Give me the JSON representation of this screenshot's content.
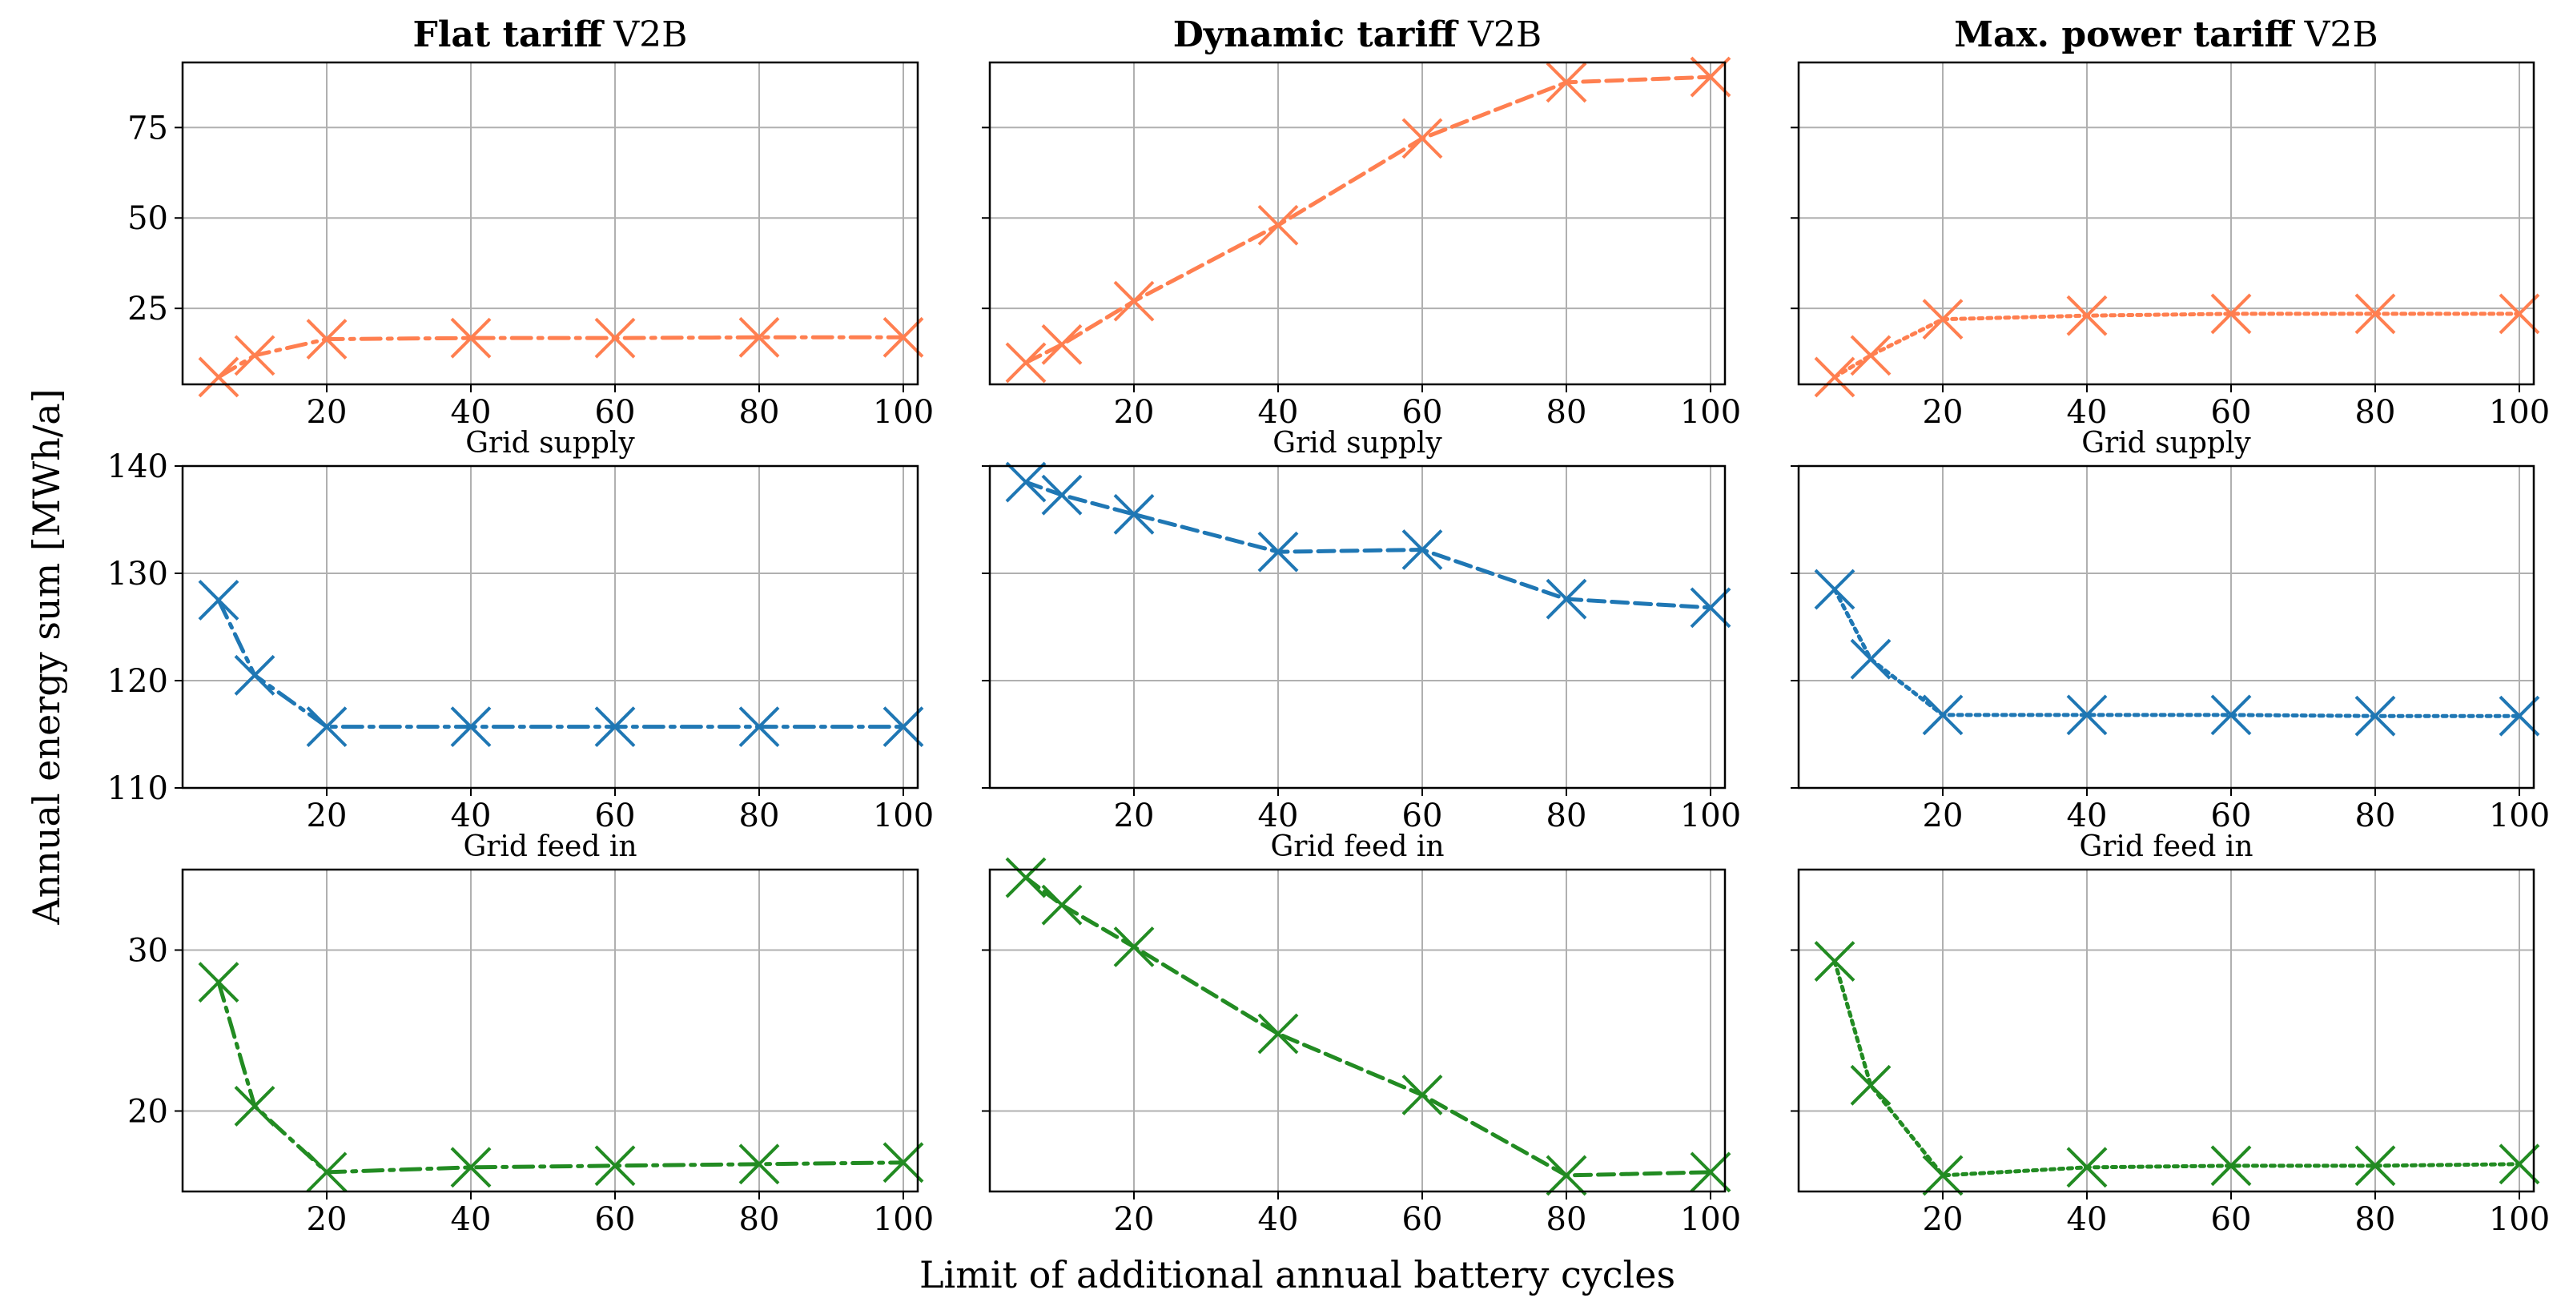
{
  "figure": {
    "ylabel": "Annual energy sum [MWh/a]",
    "xlabel": "Limit of additional annual battery cycles"
  },
  "colors": {
    "grid_supply": "#ff7f50",
    "grid_feed_in": "#1f77b4",
    "third_row": "#228b22",
    "grid_lines": "#b0b0b0",
    "frame": "#000000"
  },
  "chart_data": {
    "type": "line",
    "x": [
      5,
      10,
      20,
      40,
      60,
      80,
      100
    ],
    "xlim": [
      0,
      102
    ],
    "xticks": [
      20,
      40,
      60,
      80,
      100
    ],
    "columns": [
      {
        "title_bold": "Flat tariff",
        "title_rest": " V2B",
        "line_style": "dashdot"
      },
      {
        "title_bold": "Dynamic tariff",
        "title_rest": " V2B",
        "line_style": "dashed"
      },
      {
        "title_bold": "Max. power tariff",
        "title_rest": " V2B",
        "line_style": "dotted"
      }
    ],
    "rows": [
      {
        "label": "Grid supply",
        "color_key": "grid_supply",
        "ylim": [
          4,
          93
        ],
        "yticks": [
          25,
          50,
          75
        ],
        "series": [
          [
            6,
            12,
            16.5,
            16.8,
            16.8,
            17,
            17
          ],
          [
            10,
            15,
            27,
            48,
            72,
            87.5,
            89
          ],
          [
            6,
            12,
            22,
            23,
            23.5,
            23.5,
            23.5
          ]
        ]
      },
      {
        "label": "Grid feed in",
        "color_key": "grid_feed_in",
        "ylim": [
          110,
          140
        ],
        "yticks": [
          110,
          120,
          130,
          140
        ],
        "series": [
          [
            127.5,
            120.5,
            115.7,
            115.7,
            115.7,
            115.7,
            115.7
          ],
          [
            138.5,
            137.3,
            135.5,
            132,
            132.2,
            127.6,
            126.8
          ],
          [
            128.5,
            122,
            116.8,
            116.8,
            116.8,
            116.7,
            116.7
          ]
        ]
      },
      {
        "label": "",
        "color_key": "third_row",
        "ylim": [
          15,
          35
        ],
        "yticks": [
          20,
          30
        ],
        "series": [
          [
            28,
            20.3,
            16.2,
            16.5,
            16.6,
            16.7,
            16.8
          ],
          [
            34.5,
            32.8,
            30.2,
            24.8,
            21,
            16,
            16.2
          ],
          [
            29.3,
            21.6,
            16,
            16.5,
            16.6,
            16.6,
            16.7
          ]
        ]
      }
    ]
  }
}
